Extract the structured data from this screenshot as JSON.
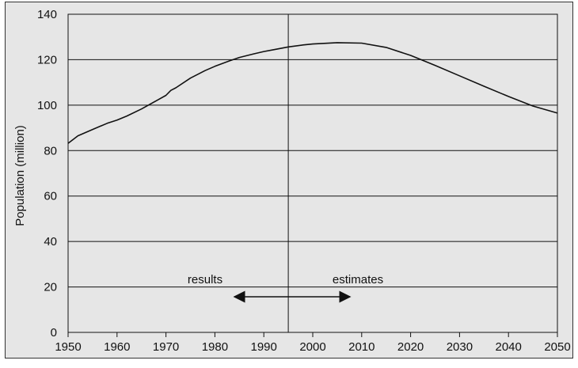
{
  "chart_data": {
    "type": "line",
    "title": "",
    "xlabel": "",
    "ylabel": "Population (million)",
    "xlim": [
      1950,
      2050
    ],
    "ylim": [
      0,
      140
    ],
    "xticks": [
      1950,
      1960,
      1970,
      1980,
      1990,
      2000,
      2010,
      2020,
      2030,
      2040,
      2050
    ],
    "yticks": [
      0,
      20,
      40,
      60,
      80,
      100,
      120,
      140
    ],
    "grid": {
      "horizontal": true,
      "vertical": false
    },
    "divider_year": 1995,
    "annotations": {
      "left": "results",
      "right": "estimates"
    },
    "series": [
      {
        "x": [
          1950,
          1952,
          1955,
          1958,
          1960,
          1962,
          1965,
          1968,
          1970,
          1971,
          1972,
          1975,
          1978,
          1980,
          1983,
          1985,
          1988,
          1990,
          1992,
          1995,
          1998,
          2000,
          2005,
          2010,
          2015,
          2020,
          2025,
          2030,
          2035,
          2040,
          2045,
          2050
        ],
        "values": [
          83.2,
          86.5,
          89.3,
          92.0,
          93.4,
          95.2,
          98.3,
          101.9,
          104.3,
          106.5,
          107.6,
          111.9,
          115.2,
          117.1,
          119.5,
          121.0,
          122.6,
          123.6,
          124.4,
          125.6,
          126.5,
          126.9,
          127.5,
          127.3,
          125.4,
          121.9,
          117.5,
          112.9,
          108.3,
          103.8,
          99.6,
          96.5
        ]
      }
    ]
  }
}
